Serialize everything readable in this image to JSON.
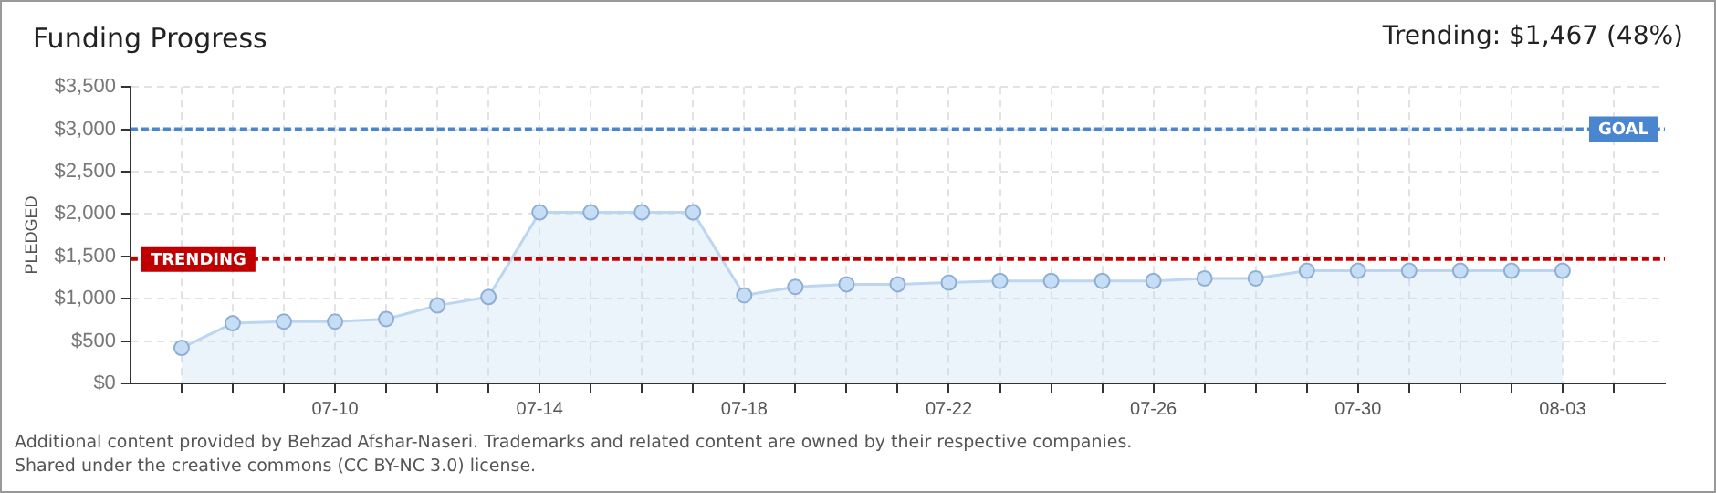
{
  "chart_data": {
    "type": "area",
    "title": "Funding Progress",
    "ylabel": "PLEDGED",
    "annotations": [
      "Trending: $1,467 (48%)",
      "Additional content provided by Behzad Afshar-Naseri. Trademarks and related content are owned by their respective companies.",
      "Shared under the creative commons (CC BY-NC 3.0) license."
    ],
    "x": [
      "--07-07",
      "--07-08",
      "--07-09",
      "--07-10",
      "--07-11",
      "--07-12",
      "--07-13",
      "--07-14",
      "--07-15",
      "--07-16",
      "--07-17",
      "--07-18",
      "--07-19",
      "--07-20",
      "--07-21",
      "--07-22",
      "--07-23",
      "--07-24",
      "--07-25",
      "--07-26",
      "--07-27",
      "--07-28",
      "--07-29",
      "--07-30",
      "--07-31",
      "--08-01",
      "--08-02",
      "--08-03"
    ],
    "series": [
      {
        "color": "#bcd6f2",
        "values": [
          420,
          710,
          730,
          730,
          760,
          920,
          1020,
          2020,
          2020,
          2020,
          2020,
          1040,
          1140,
          1170,
          1170,
          1190,
          1210,
          1210,
          1210,
          1210,
          1240,
          1240,
          1330,
          1330,
          1330,
          1330,
          1330,
          1330
        ]
      }
    ],
    "xlim": [
      "--07-06",
      "--08-05"
    ],
    "xticks": [
      {
        "value": "--07-07",
        "label": null
      },
      {
        "value": "--07-08",
        "label": null
      },
      {
        "value": "--07-09",
        "label": null
      },
      {
        "value": "--07-10",
        "label": "07-10"
      },
      {
        "value": "--07-11",
        "label": null
      },
      {
        "value": "--07-12",
        "label": null
      },
      {
        "value": "--07-13",
        "label": null
      },
      {
        "value": "--07-14",
        "label": "07-14"
      },
      {
        "value": "--07-15",
        "label": null
      },
      {
        "value": "--07-16",
        "label": null
      },
      {
        "value": "--07-17",
        "label": null
      },
      {
        "value": "--07-18",
        "label": "07-18"
      },
      {
        "value": "--07-19",
        "label": null
      },
      {
        "value": "--07-20",
        "label": null
      },
      {
        "value": "--07-21",
        "label": null
      },
      {
        "value": "--07-22",
        "label": "07-22"
      },
      {
        "value": "--07-23",
        "label": null
      },
      {
        "value": "--07-24",
        "label": null
      },
      {
        "value": "--07-25",
        "label": null
      },
      {
        "value": "--07-26",
        "label": "07-26"
      },
      {
        "value": "--07-27",
        "label": null
      },
      {
        "value": "--07-28",
        "label": null
      },
      {
        "value": "--07-29",
        "label": null
      },
      {
        "value": "--07-30",
        "label": "07-30"
      },
      {
        "value": "--07-31",
        "label": null
      },
      {
        "value": "--08-01",
        "label": null
      },
      {
        "value": "--08-02",
        "label": null
      },
      {
        "value": "--08-03",
        "label": "08-03"
      },
      {
        "value": "--08-04",
        "label": null
      }
    ],
    "ylim": [
      0,
      3500
    ],
    "yticks": [
      {
        "value": 0,
        "label": "$0"
      },
      {
        "value": 500,
        "label": "$500"
      },
      {
        "value": 1000,
        "label": "$1,000"
      },
      {
        "value": 1500,
        "label": "$1,500"
      },
      {
        "value": 2000,
        "label": "$2,000"
      },
      {
        "value": 2500,
        "label": "$2,500"
      },
      {
        "value": 3000,
        "label": "$3,000"
      },
      {
        "value": 3500,
        "label": "$3,500"
      }
    ],
    "ref_lines": [
      {
        "axis": "y",
        "value": 3000,
        "label": "GOAL",
        "color": "#4a86d0",
        "line_style": "dashed"
      },
      {
        "axis": "y",
        "value": 1467,
        "label": "TRENDING",
        "color": "#c00000",
        "line_style": "dashed"
      }
    ],
    "grid": true,
    "legend": false,
    "marker": "circle",
    "line_style": "solid"
  }
}
